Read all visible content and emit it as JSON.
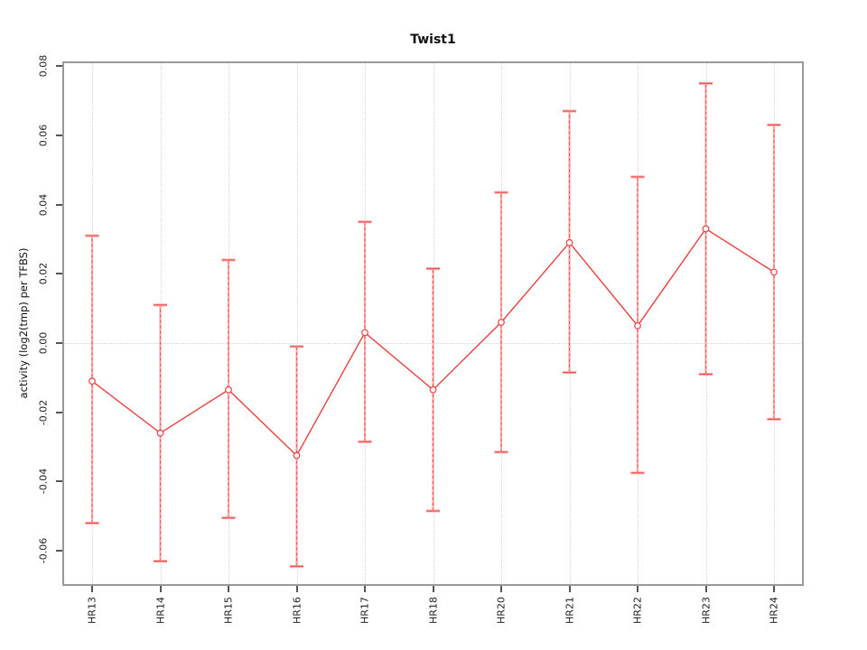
{
  "chart": {
    "title": "Twist1",
    "ylabel": "activity (log2(tmp) per TFBS)"
  },
  "chart_data": {
    "type": "line",
    "title": "Twist1",
    "xlabel": "",
    "ylabel": "activity (log2(tmp) per TFBS)",
    "categories": [
      "HR13",
      "HR14",
      "HR15",
      "HR16",
      "HR17",
      "HR18",
      "HR20",
      "HR21",
      "HR22",
      "HR23",
      "HR24"
    ],
    "series": [
      {
        "name": "activity",
        "values": [
          -0.011,
          -0.026,
          -0.0135,
          -0.0325,
          0.003,
          -0.0135,
          0.006,
          0.029,
          0.005,
          0.033,
          0.0205
        ]
      }
    ],
    "error_high": [
      0.031,
      0.011,
      0.024,
      -0.001,
      0.035,
      0.0215,
      0.0435,
      0.067,
      0.048,
      0.075,
      0.063
    ],
    "error_low": [
      -0.052,
      -0.063,
      -0.0505,
      -0.0645,
      -0.0285,
      -0.0485,
      -0.0315,
      -0.0085,
      -0.0375,
      -0.009,
      -0.022
    ],
    "ylim": [
      -0.0695,
      0.0805
    ],
    "yticks": [
      0.08,
      0.06,
      0.04,
      0.02,
      0.0,
      -0.02,
      -0.04,
      -0.06
    ],
    "ytick_labels": [
      "0.08",
      "0.06",
      "0.04",
      "0.02",
      "0.00",
      "-0.02",
      "-0.04",
      "-0.06"
    ],
    "grid": "dotted vertical line per category, dotted horizontal line at 0",
    "legend": "none",
    "colors": {
      "series_line": "#ee4040",
      "point_stroke": "#ee4040",
      "errorbar_fill": "#ffabab",
      "errorbar_dash": "#ee5151",
      "grid": "#d6d6d6",
      "box": "#999999",
      "tick": "#555555",
      "text": "#1a1a1a"
    }
  }
}
